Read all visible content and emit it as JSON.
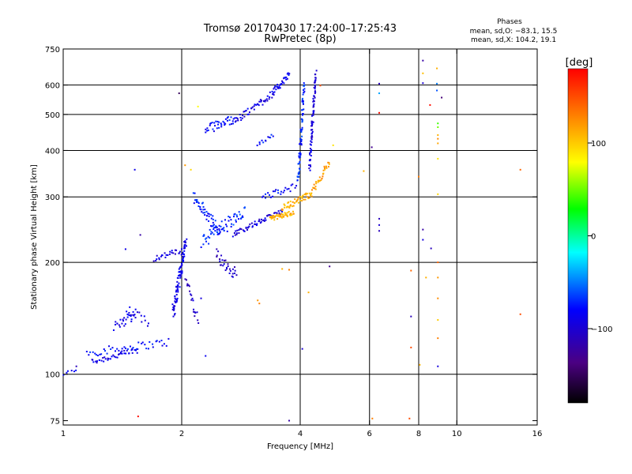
{
  "chart_data": {
    "type": "scatter",
    "title": "Tromsø 20170430 17:24:00–17:25:43",
    "subtitle": "RwPretec (8p)",
    "phases": {
      "heading": "Phases",
      "line_o": "mean, sd,O: −83.1, 15.5",
      "line_x": "mean, sd,X: 104.2, 19.1"
    },
    "xlabel": "Frequency [MHz]",
    "ylabel": "Stationary phase Virtual Height [km]",
    "x_scale": "log",
    "y_scale": "log",
    "xlim": [
      1,
      16
    ],
    "ylim": [
      73,
      750
    ],
    "x_ticks": [
      {
        "value": 1,
        "label": "1"
      },
      {
        "value": 2,
        "label": "2"
      },
      {
        "value": 4,
        "label": "4"
      },
      {
        "value": 6,
        "label": "6"
      },
      {
        "value": 8,
        "label": "8"
      },
      {
        "value": 10,
        "label": "10"
      },
      {
        "value": 16,
        "label": "16"
      }
    ],
    "x_gridlines": [
      2,
      4,
      6,
      8,
      10
    ],
    "y_ticks": [
      {
        "value": 75,
        "label": "75"
      },
      {
        "value": 100,
        "label": "100"
      },
      {
        "value": 200,
        "label": "200"
      },
      {
        "value": 300,
        "label": "300"
      },
      {
        "value": 400,
        "label": "400"
      },
      {
        "value": 500,
        "label": "500"
      },
      {
        "value": 600,
        "label": "600"
      },
      {
        "value": 750,
        "label": "750"
      }
    ],
    "y_gridlines": [
      100,
      200,
      300,
      400,
      500,
      600
    ],
    "grid": true,
    "colorbar": {
      "label": "[deg]",
      "range": [
        -180,
        180
      ],
      "ticks": [
        {
          "value": 100,
          "label": "100"
        },
        {
          "value": 0,
          "label": "0"
        },
        {
          "value": -100,
          "label": "−100"
        }
      ]
    },
    "traces": [
      {
        "x_range": [
          1.0,
          1.08
        ],
        "y_start": 100,
        "y_end": 103,
        "phase": -85,
        "n": 6,
        "spread": 0.01
      },
      {
        "x_range": [
          1.18,
          1.55
        ],
        "y_start": 108,
        "y_end": 116,
        "phase": -90,
        "n": 40,
        "spread": 0.02
      },
      {
        "x_range": [
          1.15,
          1.85
        ],
        "y_start": 114,
        "y_end": 122,
        "phase": -80,
        "n": 45,
        "spread": 0.025
      },
      {
        "x_range": [
          1.35,
          1.52
        ],
        "y_start": 134,
        "y_end": 146,
        "phase": -92,
        "n": 25,
        "spread": 0.04
      },
      {
        "x_range": [
          1.45,
          1.65
        ],
        "y_start": 150,
        "y_end": 138,
        "phase": -88,
        "n": 15,
        "spread": 0.03
      },
      {
        "x_range": [
          1.7,
          2.0
        ],
        "y_start": 205,
        "y_end": 215,
        "phase": -95,
        "n": 25,
        "spread": 0.02
      },
      {
        "x_range": [
          1.9,
          2.05
        ],
        "y_start": 145,
        "y_end": 230,
        "phase": -90,
        "n": 90,
        "spread": 0.05
      },
      {
        "x_range": [
          2.05,
          2.2
        ],
        "y_start": 180,
        "y_end": 140,
        "phase": -100,
        "n": 20,
        "spread": 0.03
      },
      {
        "x_range": [
          2.15,
          2.5
        ],
        "y_start": 300,
        "y_end": 240,
        "phase": -75,
        "n": 50,
        "spread": 0.04
      },
      {
        "x_range": [
          2.25,
          2.9
        ],
        "y_start": 230,
        "y_end": 270,
        "phase": -70,
        "n": 60,
        "spread": 0.05
      },
      {
        "x_range": [
          2.45,
          2.75
        ],
        "y_start": 210,
        "y_end": 185,
        "phase": -105,
        "n": 30,
        "spread": 0.04
      },
      {
        "x_range": [
          2.7,
          3.6
        ],
        "y_start": 238,
        "y_end": 275,
        "phase": -95,
        "n": 60,
        "spread": 0.015
      },
      {
        "x_range": [
          3.35,
          3.85
        ],
        "y_start": 262,
        "y_end": 272,
        "phase": 110,
        "n": 45,
        "spread": 0.015
      },
      {
        "x_range": [
          3.6,
          4.25
        ],
        "y_start": 280,
        "y_end": 305,
        "phase": 112,
        "n": 45,
        "spread": 0.02
      },
      {
        "x_range": [
          4.25,
          4.75
        ],
        "y_start": 305,
        "y_end": 372,
        "phase": 118,
        "n": 35,
        "spread": 0.02
      },
      {
        "x_range": [
          2.3,
          2.75
        ],
        "y_start": 455,
        "y_end": 490,
        "phase": -80,
        "n": 40,
        "spread": 0.03
      },
      {
        "x_range": [
          2.75,
          3.4
        ],
        "y_start": 480,
        "y_end": 570,
        "phase": -92,
        "n": 45,
        "spread": 0.025
      },
      {
        "x_range": [
          3.4,
          3.75
        ],
        "y_start": 570,
        "y_end": 640,
        "phase": -88,
        "n": 35,
        "spread": 0.02
      },
      {
        "x_range": [
          3.12,
          3.42
        ],
        "y_start": 415,
        "y_end": 440,
        "phase": -78,
        "n": 12,
        "spread": 0.01
      },
      {
        "x_range": [
          3.95,
          4.1
        ],
        "y_start": 330,
        "y_end": 600,
        "phase": -72,
        "n": 70,
        "spread": 0.03
      },
      {
        "x_range": [
          4.22,
          4.38
        ],
        "y_start": 360,
        "y_end": 640,
        "phase": -95,
        "n": 80,
        "spread": 0.03
      },
      {
        "x_range": [
          3.2,
          3.9
        ],
        "y_start": 300,
        "y_end": 320,
        "phase": -82,
        "n": 25,
        "spread": 0.02
      }
    ],
    "isolated_points": [
      {
        "x": 1.08,
        "y": 105,
        "phase": -110
      },
      {
        "x": 1.52,
        "y": 355,
        "phase": -90
      },
      {
        "x": 1.57,
        "y": 237,
        "phase": -120
      },
      {
        "x": 1.44,
        "y": 217,
        "phase": -90
      },
      {
        "x": 1.55,
        "y": 77,
        "phase": 175
      },
      {
        "x": 1.97,
        "y": 570,
        "phase": -150
      },
      {
        "x": 2.04,
        "y": 365,
        "phase": 120
      },
      {
        "x": 2.11,
        "y": 355,
        "phase": 95
      },
      {
        "x": 2.2,
        "y": 525,
        "phase": 80
      },
      {
        "x": 2.24,
        "y": 160,
        "phase": -95
      },
      {
        "x": 2.3,
        "y": 112,
        "phase": -85
      },
      {
        "x": 3.12,
        "y": 158,
        "phase": 120
      },
      {
        "x": 3.15,
        "y": 155,
        "phase": 130
      },
      {
        "x": 3.6,
        "y": 192,
        "phase": 110
      },
      {
        "x": 3.75,
        "y": 191,
        "phase": 130
      },
      {
        "x": 4.2,
        "y": 166,
        "phase": 110
      },
      {
        "x": 4.05,
        "y": 117,
        "phase": -100
      },
      {
        "x": 4.75,
        "y": 195,
        "phase": -130
      },
      {
        "x": 4.85,
        "y": 413,
        "phase": 90
      },
      {
        "x": 4.5,
        "y": 598,
        "phase": 150
      },
      {
        "x": 3.75,
        "y": 75,
        "phase": -120
      },
      {
        "x": 5.8,
        "y": 352,
        "phase": 110
      },
      {
        "x": 6.08,
        "y": 408,
        "phase": -130
      },
      {
        "x": 6.35,
        "y": 605,
        "phase": -110
      },
      {
        "x": 6.35,
        "y": 570,
        "phase": -40
      },
      {
        "x": 6.35,
        "y": 505,
        "phase": 175
      },
      {
        "x": 6.35,
        "y": 262,
        "phase": -110
      },
      {
        "x": 6.35,
        "y": 252,
        "phase": -100
      },
      {
        "x": 6.35,
        "y": 243,
        "phase": -110
      },
      {
        "x": 6.1,
        "y": 76,
        "phase": 130
      },
      {
        "x": 7.65,
        "y": 190,
        "phase": 140
      },
      {
        "x": 7.65,
        "y": 143,
        "phase": -110
      },
      {
        "x": 7.65,
        "y": 118,
        "phase": 150
      },
      {
        "x": 7.58,
        "y": 76,
        "phase": 150
      },
      {
        "x": 8.0,
        "y": 340,
        "phase": 130
      },
      {
        "x": 8.05,
        "y": 106,
        "phase": 110
      },
      {
        "x": 8.2,
        "y": 698,
        "phase": -120
      },
      {
        "x": 8.2,
        "y": 645,
        "phase": 105
      },
      {
        "x": 8.2,
        "y": 607,
        "phase": -100
      },
      {
        "x": 8.2,
        "y": 245,
        "phase": -120
      },
      {
        "x": 8.2,
        "y": 230,
        "phase": -95
      },
      {
        "x": 8.35,
        "y": 182,
        "phase": 110
      },
      {
        "x": 8.55,
        "y": 530,
        "phase": 175
      },
      {
        "x": 8.6,
        "y": 218,
        "phase": -110
      },
      {
        "x": 8.9,
        "y": 665,
        "phase": 110
      },
      {
        "x": 8.9,
        "y": 605,
        "phase": -50
      },
      {
        "x": 8.9,
        "y": 580,
        "phase": -60
      },
      {
        "x": 8.95,
        "y": 473,
        "phase": 40
      },
      {
        "x": 8.95,
        "y": 462,
        "phase": 50
      },
      {
        "x": 8.95,
        "y": 440,
        "phase": 110
      },
      {
        "x": 8.95,
        "y": 430,
        "phase": 125
      },
      {
        "x": 8.95,
        "y": 418,
        "phase": 115
      },
      {
        "x": 8.95,
        "y": 380,
        "phase": 90
      },
      {
        "x": 8.95,
        "y": 305,
        "phase": 95
      },
      {
        "x": 8.95,
        "y": 200,
        "phase": 140
      },
      {
        "x": 8.95,
        "y": 182,
        "phase": 120
      },
      {
        "x": 8.95,
        "y": 160,
        "phase": 125
      },
      {
        "x": 8.95,
        "y": 140,
        "phase": 100
      },
      {
        "x": 8.95,
        "y": 125,
        "phase": 130
      },
      {
        "x": 8.95,
        "y": 105,
        "phase": -95
      },
      {
        "x": 9.15,
        "y": 555,
        "phase": -140
      },
      {
        "x": 14.5,
        "y": 355,
        "phase": 140
      },
      {
        "x": 14.5,
        "y": 145,
        "phase": 150
      }
    ]
  }
}
